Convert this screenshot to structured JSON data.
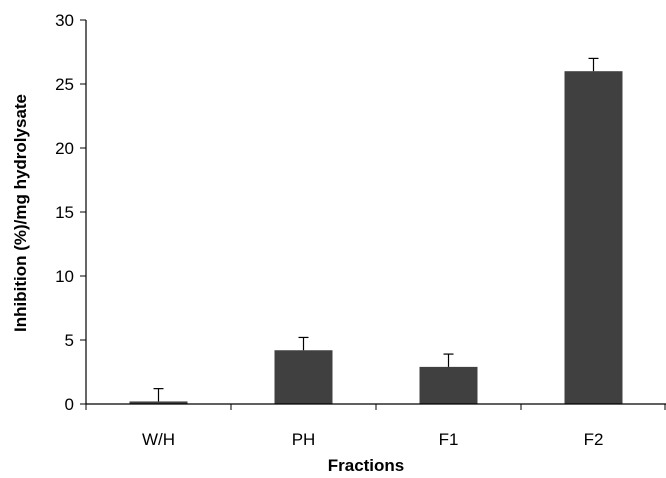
{
  "chart_data": {
    "type": "bar",
    "title": "",
    "xlabel": "Fractions",
    "ylabel": "Inhibition (%)/mg hydrolysate",
    "categories": [
      "W/H",
      "PH",
      "F1",
      "F2"
    ],
    "values": [
      0.2,
      4.2,
      2.9,
      26.0
    ],
    "error_bars": [
      1.0,
      1.0,
      1.0,
      1.0
    ],
    "ylim": [
      0,
      30
    ],
    "yticks": [
      0,
      5,
      10,
      15,
      20,
      25,
      30
    ],
    "grid": false,
    "legend": "none",
    "colors": {
      "bar": "#404040",
      "axis": "#000000",
      "error_bar": "#000000"
    }
  }
}
